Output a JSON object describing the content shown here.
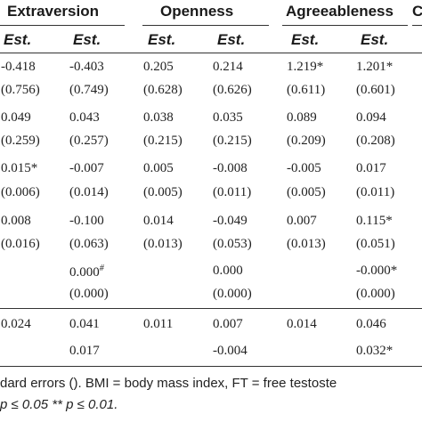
{
  "headers": {
    "col0_partial": "",
    "extraversion": "Extraversion",
    "openness": "Openness",
    "agreeableness": "Agreeableness",
    "next_partial": "C"
  },
  "est_label": "Est.",
  "rows": [
    {
      "c0": "-0.418",
      "c1": "-0.403",
      "c2": "0.205",
      "c3": "0.214",
      "c4": "1.219*",
      "c5": "1.201*"
    },
    {
      "c0": "(0.756)",
      "c1": "(0.749)",
      "c2": "(0.628)",
      "c3": "(0.626)",
      "c4": "(0.611)",
      "c5": "(0.601)"
    },
    {
      "c0": "0.049",
      "c1": "0.043",
      "c2": "0.038",
      "c3": "0.035",
      "c4": "0.089",
      "c5": "0.094"
    },
    {
      "c0": "(0.259)",
      "c1": "(0.257)",
      "c2": "(0.215)",
      "c3": "(0.215)",
      "c4": "(0.209)",
      "c5": "(0.208)"
    },
    {
      "c0": "0.015*",
      "c1": "-0.007",
      "c2": "0.005",
      "c3": "-0.008",
      "c4": "-0.005",
      "c5": "0.017"
    },
    {
      "c0": "(0.006)",
      "c1": "(0.014)",
      "c2": "(0.005)",
      "c3": "(0.011)",
      "c4": "(0.005)",
      "c5": "(0.011)"
    },
    {
      "c0": "0.008",
      "c1": "-0.100",
      "c2": "0.014",
      "c3": "-0.049",
      "c4": "0.007",
      "c5": "0.115*"
    },
    {
      "c0": "(0.016)",
      "c1": "(0.063)",
      "c2": "(0.013)",
      "c3": "(0.053)",
      "c4": "(0.013)",
      "c5": "(0.051)"
    },
    {
      "c0": "",
      "c1": "0.000#",
      "c2": "",
      "c3": "0.000",
      "c4": "",
      "c5": "-0.000*"
    },
    {
      "c0": "",
      "c1": "(0.000)",
      "c2": "",
      "c3": "(0.000)",
      "c4": "",
      "c5": "(0.000)"
    }
  ],
  "r2_row": {
    "c0": "0.024",
    "c1": "0.041",
    "c2": "0.011",
    "c3": "0.007",
    "c4": "0.014",
    "c5": "0.046"
  },
  "delta_row": {
    "c0": "",
    "c1": "0.017",
    "c2": "",
    "c3": "-0.004",
    "c4": "",
    "c5": "0.032*"
  },
  "footnote_1": "dard errors (). BMI = body mass index, FT = free testoste",
  "footnote_2": "p ≤ 0.05 ** p ≤ 0.01."
}
